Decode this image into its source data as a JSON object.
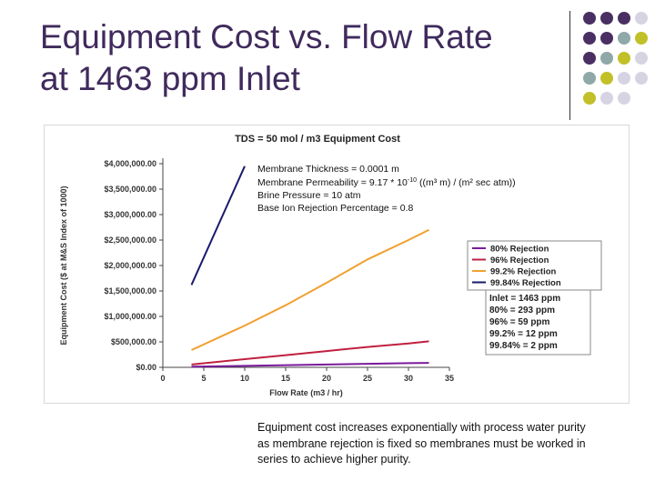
{
  "slide": {
    "title_line1": "Equipment Cost vs. Flow Rate",
    "title_line2": "at 1463 ppm Inlet",
    "caption_lines": [
      "Equipment cost increases exponentially with process water purity",
      "as membrane rejection is fixed so membranes must be worked in",
      "series to achieve higher purity."
    ],
    "dot_colors": {
      "purple": "#4a2f63",
      "teal": "#8fa8a8",
      "olive": "#c2c028",
      "lavender": "#d6d4e2"
    }
  },
  "chart_data": {
    "type": "line",
    "title": "TDS = 50 mol / m3 Equipment Cost",
    "xlabel": "Flow Rate (m3 / hr)",
    "ylabel": "Equipment Cost ($ at M&S Index of 1000)",
    "xlim": [
      0,
      35
    ],
    "ylim": [
      0,
      4000000
    ],
    "x_ticks": [
      0,
      5,
      10,
      15,
      20,
      25,
      30,
      35
    ],
    "x_tick_labels": [
      "0",
      "5",
      "10",
      "15",
      "20",
      "25",
      "30",
      "35"
    ],
    "y_ticks": [
      0,
      500000,
      1000000,
      1500000,
      2000000,
      2500000,
      3000000,
      3500000,
      4000000
    ],
    "y_tick_labels": [
      "$0.00",
      "$500,000.00",
      "$1,000,000.00",
      "$1,500,000.00",
      "$2,000,000.00",
      "$2,500,000.00",
      "$3,000,000.00",
      "$3,500,000.00",
      "$4,000,000.00"
    ],
    "grid": false,
    "legend_position": "right",
    "series": [
      {
        "name": "80% Rejection",
        "color": "#7a1a9a",
        "x": [
          3.5,
          10,
          15,
          20,
          25,
          30,
          32.5
        ],
        "values": [
          15000,
          28000,
          42000,
          56000,
          70000,
          82000,
          88000
        ]
      },
      {
        "name": "96% Rejection",
        "color": "#c02040",
        "x": [
          3.5,
          10,
          15,
          20,
          25,
          30,
          32.5
        ],
        "values": [
          55000,
          160000,
          240000,
          320000,
          400000,
          470000,
          510000
        ]
      },
      {
        "name": "99.2% Rejection",
        "color": "#f0a030",
        "x": [
          3.5,
          10,
          15,
          20,
          25,
          30,
          32.5
        ],
        "values": [
          340000,
          820000,
          1220000,
          1660000,
          2120000,
          2500000,
          2700000
        ]
      },
      {
        "name": "99.84% Rejection",
        "color": "#1a1a6e",
        "x": [
          3.5,
          10
        ],
        "values": [
          1620000,
          3950000
        ]
      }
    ],
    "annotations": [
      "Membrane Thickness = 0.0001 m",
      "Membrane Permeability = 9.17 * 10",
      "((m³ m) / (m² sec atm))",
      "Brine Pressure = 10 atm",
      "Base Ion Rejection Percentage = 0.8"
    ],
    "annotation_exponent": "-10",
    "info_box": [
      "Inlet = 1463 ppm",
      "80% = 293 ppm",
      "96% = 59 ppm",
      "99.2% = 12 ppm",
      "99.84% = 2 ppm"
    ]
  }
}
